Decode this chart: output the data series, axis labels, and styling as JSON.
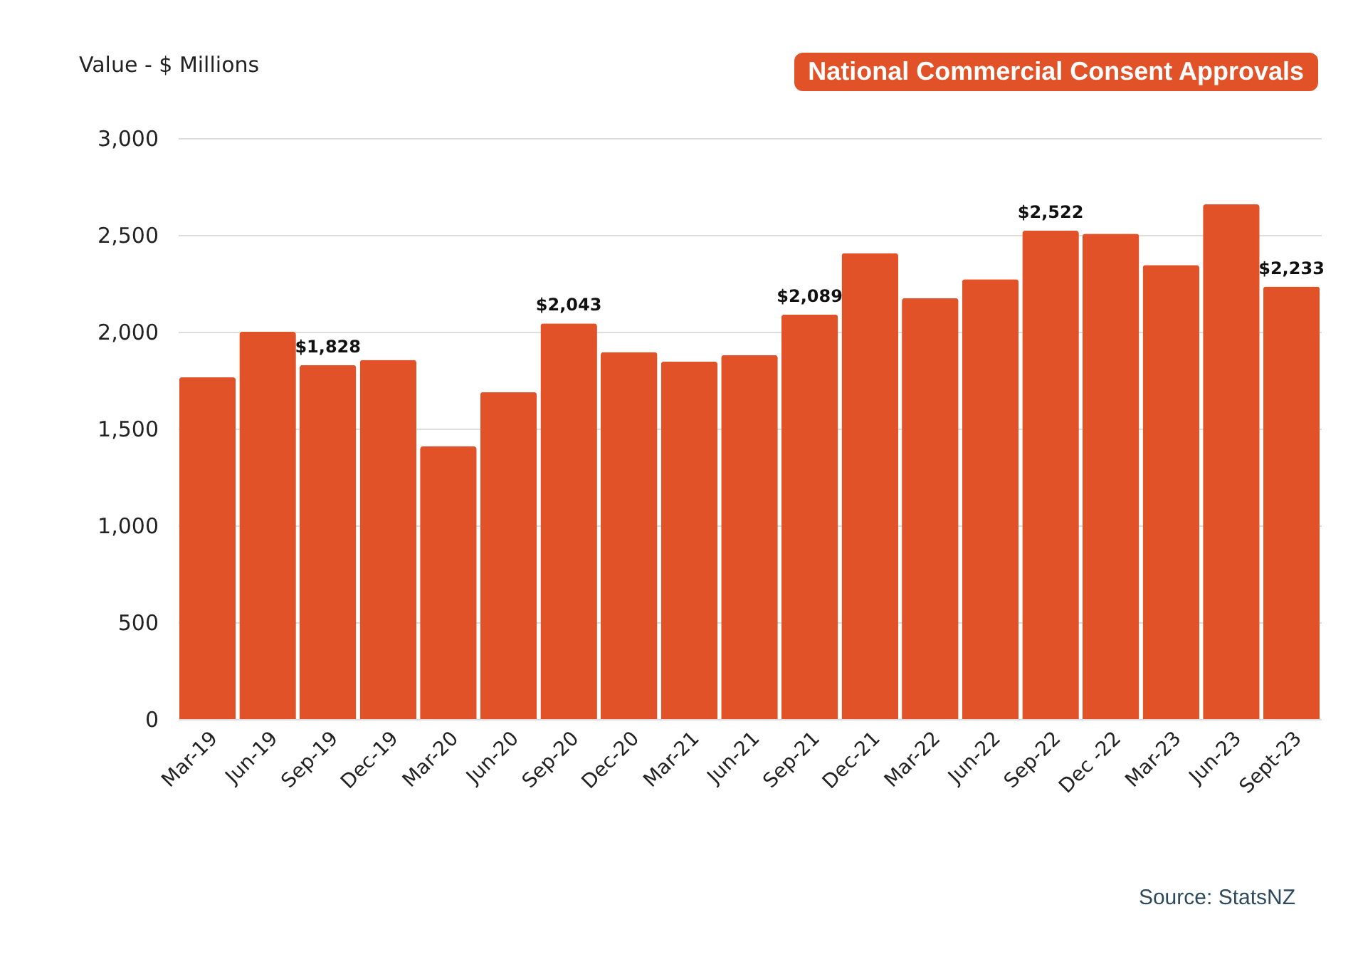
{
  "chart_data": {
    "type": "bar",
    "title": "National Commercial Consent Approvals",
    "ylabel": "Value - $ Millions",
    "categories": [
      "Mar-19",
      "Jun-19",
      "Sep-19",
      "Dec-19",
      "Mar-20",
      "Jun-20",
      "Sep-20",
      "Dec-20",
      "Mar-21",
      "Jun-21",
      "Sep-21",
      "Dec-21",
      "Mar-22",
      "Jun-22",
      "Sep-22",
      "Dec -22",
      "Mar-23",
      "Jun-23",
      "Sept-23"
    ],
    "values": [
      1765,
      2000,
      1828,
      1855,
      1408,
      1688,
      2043,
      1895,
      1846,
      1880,
      2089,
      2406,
      2174,
      2271,
      2522,
      2506,
      2345,
      2658,
      2233
    ],
    "value_labels": [
      null,
      null,
      "$1,828",
      null,
      null,
      null,
      "$2,043",
      null,
      null,
      null,
      "$2,089",
      null,
      null,
      null,
      "$2,522",
      null,
      null,
      null,
      "$2,233"
    ],
    "color": "#e25228",
    "ylim": [
      0,
      3000
    ],
    "yticks": [
      {
        "value": 0,
        "label": "0"
      },
      {
        "value": 500,
        "label": "500"
      },
      {
        "value": 1000,
        "label": "1,000"
      },
      {
        "value": 1500,
        "label": "1,500"
      },
      {
        "value": 2000,
        "label": "2,000"
      },
      {
        "value": 2500,
        "label": "2,500"
      },
      {
        "value": 3000,
        "label": "3,000"
      }
    ],
    "grid": "y",
    "annotations": [
      "Source: StatsNZ"
    ]
  }
}
